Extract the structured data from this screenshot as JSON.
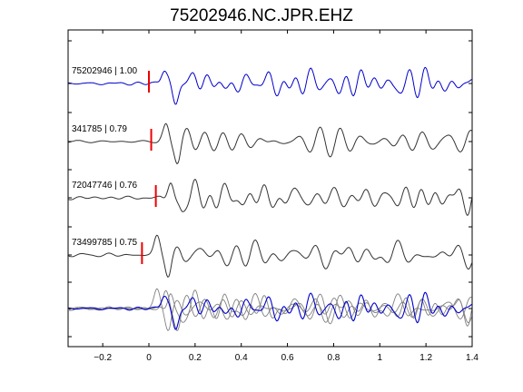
{
  "chart_data": {
    "type": "line",
    "title": "75202946.NC.JPR.EHZ",
    "xlabel": "",
    "ylabel": "",
    "xlim": [
      -0.35,
      1.4
    ],
    "xticks": [
      -0.2,
      0,
      0.2,
      0.4,
      0.6,
      0.8,
      1,
      1.2,
      1.4
    ],
    "xtick_labels": [
      "−0.2",
      "0",
      "0.2",
      "0.4",
      "0.6",
      "0.8",
      "1",
      "1.2",
      "1.4"
    ],
    "grid": false,
    "colors": {
      "reference": "#0000cc",
      "match": "#333333",
      "overlay_match": "#808080",
      "pick": "#ee0000",
      "axis": "#000000"
    },
    "series": [
      {
        "name": "75202946 | 1.00",
        "color": "#0000cc",
        "pick_time": 0.0,
        "mode": "reference",
        "seed": 1
      },
      {
        "name": "341785 | 0.79",
        "color": "#333333",
        "pick_time": 0.01,
        "mode": "match",
        "seed": 2
      },
      {
        "name": "72047746 | 0.76",
        "color": "#333333",
        "pick_time": 0.03,
        "mode": "match",
        "seed": 3
      },
      {
        "name": "73499785 | 0.75",
        "color": "#333333",
        "pick_time": -0.03,
        "mode": "match",
        "seed": 4
      }
    ],
    "overlay": {
      "label": "",
      "includes": [
        "75202946 | 1.00",
        "341785 | 0.79",
        "72047746 | 0.76",
        "73499785 | 0.75"
      ]
    }
  }
}
